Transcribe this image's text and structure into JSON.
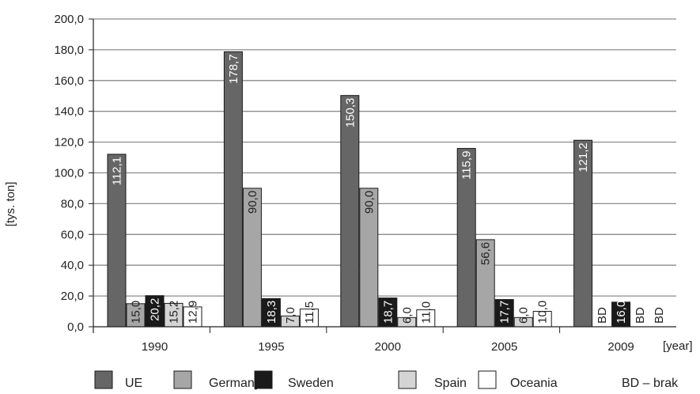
{
  "chart_data": {
    "type": "bar",
    "title": "",
    "ylabel": "[tys. ton]",
    "xlabel": "[year]",
    "ylim": [
      0,
      200
    ],
    "yticks": [
      0,
      20,
      40,
      60,
      80,
      100,
      120,
      140,
      160,
      180,
      200
    ],
    "ytick_labels": [
      "0,0",
      "20,0",
      "40,0",
      "60,0",
      "80,0",
      "100,0",
      "120,0",
      "140,0",
      "160,0",
      "180,0",
      "200,0"
    ],
    "categories": [
      "1990",
      "1995",
      "2000",
      "2005",
      "2009"
    ],
    "grid": true,
    "legend_position": "bottom",
    "series": [
      {
        "name": "UE",
        "color": "#666666",
        "label_color": "#ffffff",
        "values": [
          112.1,
          178.7,
          150.3,
          115.9,
          121.2
        ],
        "labels": [
          "112,1",
          "178,7",
          "150,3",
          "115,9",
          "121,2"
        ]
      },
      {
        "name": "Germany",
        "color": "#a6a6a6",
        "label_color": "#222222",
        "values": [
          15.0,
          90.0,
          90.0,
          56.6,
          null
        ],
        "labels": [
          "15,0",
          "90,0",
          "90,0",
          "56,6",
          "BD"
        ]
      },
      {
        "name": "Sweden",
        "color": "#1a1a1a",
        "label_color": "#ffffff",
        "values": [
          20.2,
          18.3,
          18.7,
          17.7,
          16.0
        ],
        "labels": [
          "20,2",
          "18,3",
          "18,7",
          "17,7",
          "16,0"
        ]
      },
      {
        "name": "Spain",
        "color": "#d4d4d4",
        "label_color": "#222222",
        "values": [
          15.2,
          7.0,
          6.0,
          6.0,
          null
        ],
        "labels": [
          "15,2",
          "7,0",
          "6,0",
          "6,0",
          "BD"
        ]
      },
      {
        "name": "Oceania",
        "color": "#ffffff",
        "label_color": "#222222",
        "values": [
          12.9,
          11.5,
          11.0,
          10.0,
          null
        ],
        "labels": [
          "12,9",
          "11,5",
          "11,0",
          "10,0",
          "BD"
        ]
      }
    ],
    "legend_note": "BD – brak"
  }
}
